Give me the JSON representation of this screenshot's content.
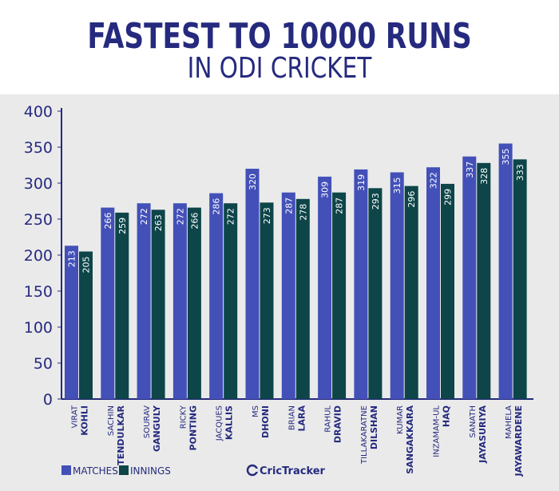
{
  "title": {
    "line1": "FASTEST TO 10000 RUNS",
    "line2": "IN ODI CRICKET"
  },
  "brand": "CricTracker",
  "colors": {
    "matches": "#4350b8",
    "innings": "#0d4549",
    "text": "#252a7e",
    "panel": "#eaeaea"
  },
  "chart_data": {
    "type": "bar",
    "title": "FASTEST TO 10000 RUNS IN ODI CRICKET",
    "xlabel": "",
    "ylabel": "",
    "ylim": [
      0,
      400
    ],
    "yticks": [
      0,
      50,
      100,
      150,
      200,
      250,
      300,
      350,
      400
    ],
    "grid": false,
    "legend": "bottom-left",
    "categories": [
      {
        "first": "VIRAT",
        "last": "KOHLI"
      },
      {
        "first": "SACHIN",
        "last": "TENDULKAR"
      },
      {
        "first": "SOURAV",
        "last": "GANGULY"
      },
      {
        "first": "RICKY",
        "last": "PONTING"
      },
      {
        "first": "JACQUES",
        "last": "KALLIS"
      },
      {
        "first": "MS",
        "last": "DHONI"
      },
      {
        "first": "BRIAN",
        "last": "LARA"
      },
      {
        "first": "RAHUL",
        "last": "DRAVID"
      },
      {
        "first": "TILLAKARATNE",
        "last": "DILSHAN"
      },
      {
        "first": "KUMAR",
        "last": "SANGAKKARA"
      },
      {
        "first": "INZAMAM-UL",
        "last": "HAQ"
      },
      {
        "first": "SANATH",
        "last": "JAYASURIYA"
      },
      {
        "first": "MAHELA",
        "last": "JAYAWARDENE"
      }
    ],
    "series": [
      {
        "name": "MATCHES",
        "values": [
          213,
          266,
          272,
          272,
          286,
          320,
          287,
          309,
          319,
          315,
          322,
          337,
          355
        ]
      },
      {
        "name": "INNINGS",
        "values": [
          205,
          259,
          263,
          266,
          272,
          273,
          278,
          287,
          293,
          296,
          299,
          328,
          333
        ]
      }
    ]
  }
}
